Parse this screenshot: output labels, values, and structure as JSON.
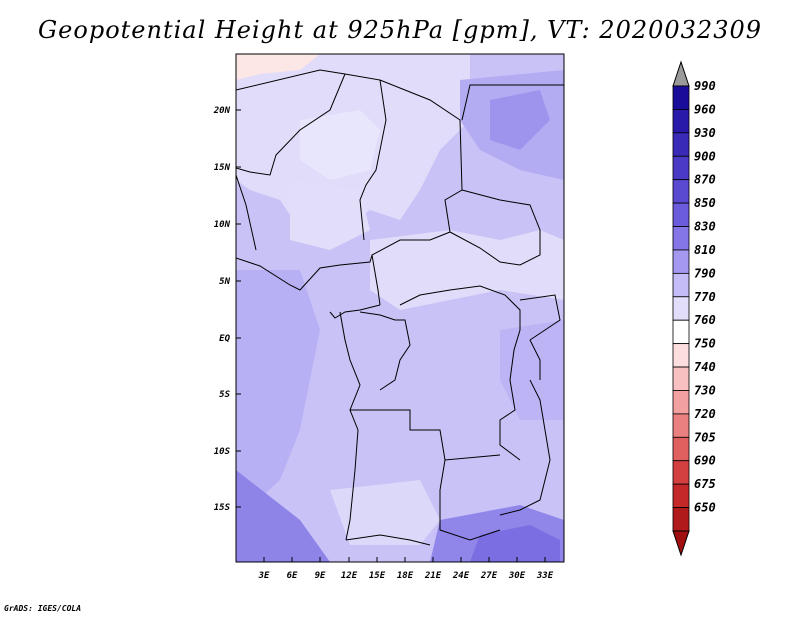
{
  "title": "Geopotential Height at 925hPa [gpm], VT: 2020032309",
  "footer": "GrADS: IGES/COLA",
  "map": {
    "lat_labels": [
      "20N",
      "15N",
      "10N",
      "5N",
      "EQ",
      "5S",
      "10S",
      "15S"
    ],
    "lon_labels": [
      "3E",
      "6E",
      "9E",
      "12E",
      "15E",
      "18E",
      "21E",
      "24E",
      "27E",
      "30E",
      "33E"
    ]
  },
  "colorbar": {
    "levels": [
      "990",
      "960",
      "930",
      "900",
      "870",
      "850",
      "830",
      "810",
      "790",
      "770",
      "760",
      "750",
      "740",
      "730",
      "720",
      "705",
      "690",
      "675",
      "650"
    ],
    "colors": [
      "#1a0d99",
      "#2a1aaa",
      "#3a2ab8",
      "#4a3ac6",
      "#5a4ad2",
      "#6a5cdc",
      "#8476e6",
      "#a498f0",
      "#c4bcf6",
      "#e2defa",
      "#ffffff",
      "#fcdede",
      "#f8c0c0",
      "#f2a0a0",
      "#ea8080",
      "#e06060",
      "#d44040",
      "#c42828",
      "#b01a1a"
    ],
    "top_arrow_color": "#9a9a9a",
    "bottom_arrow_color": "#a01010"
  }
}
